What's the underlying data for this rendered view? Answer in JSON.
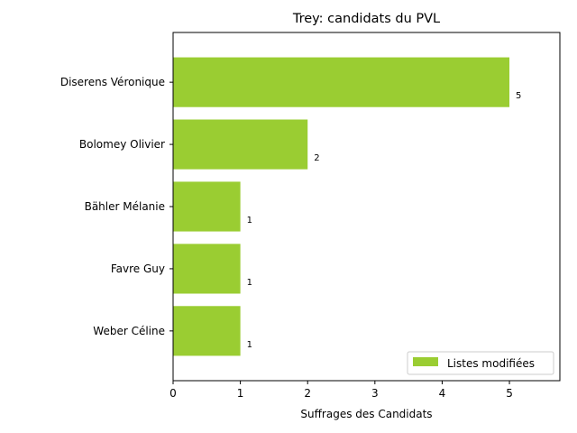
{
  "chart_data": {
    "type": "bar",
    "orientation": "horizontal",
    "title": "Trey: candidats du PVL",
    "xlabel": "Suffrages des Candidats",
    "ylabel": "",
    "categories": [
      "Diserens Véronique",
      "Bolomey Olivier",
      "Bähler Mélanie",
      "Favre Guy",
      "Weber Céline"
    ],
    "series": [
      {
        "name": "Listes modifiées",
        "values": [
          5,
          2,
          1,
          1,
          1
        ],
        "color": "#9acd32"
      }
    ],
    "data_labels": [
      "5",
      "2",
      "1",
      "1",
      "1"
    ],
    "xlim": [
      0,
      5.75
    ],
    "xticks": [
      "0",
      "1",
      "2",
      "3",
      "4",
      "5"
    ],
    "grid": false,
    "legend_position": "lower-right"
  }
}
